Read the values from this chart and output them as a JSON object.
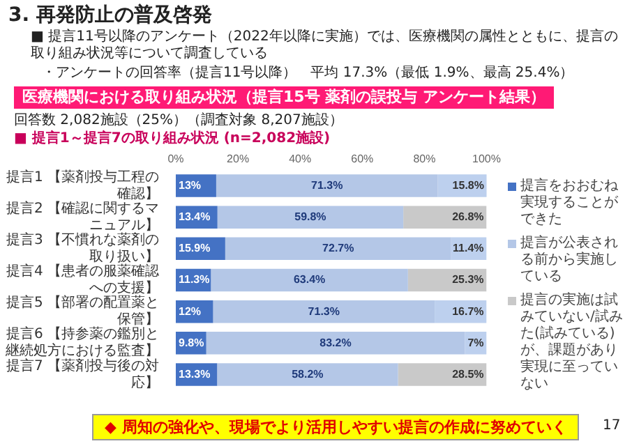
{
  "chart_data": {
    "type": "bar",
    "orientation": "horizontal",
    "stacked": true,
    "title": "医療機関における取り組み状況（提言15号 薬剤の誤投与 アンケート結果）",
    "subtitle": "■ 提言1～提言7の取り組み状況 (n=2,082施設)",
    "annotations": [
      "3. 再発防止の普及啓発",
      "■ 提言11号以降のアンケート（2022年以降に実施）では、医療機関の属性とともに、提言の取り組み状況等について調査している",
      "・アンケートの回答率（提言11号以降）　平均 17.3%（最低 1.9%、最高 25.4%）",
      "回答数 2,082施設（25%）（調査対象 8,207施設）",
      "◆ 周知の強化や、現場でより活用しやすい提言の作成に努めていく",
      "17"
    ],
    "categories": [
      "提言1 【薬剤投与工程の確認】",
      "提言2 【確認に関するマニュアル】",
      "提言3 【不慣れな薬剤の取り扱い】",
      "提言4 【患者の服薬確認への支援】",
      "提言5 【部署の配置薬と保管】",
      "提言6 【持参薬の鑑別と継続処方における監査】",
      "提言7 【薬剤投与後の対応】"
    ],
    "series": [
      {
        "name": "提言をおおむね実現することができた",
        "color": "#4472c4",
        "values": [
          13,
          13.4,
          15.9,
          11.3,
          12,
          9.8,
          13.3
        ],
        "value_labels": [
          "13%",
          "13.4%",
          "15.9%",
          "11.3%",
          "12%",
          "9.8%",
          "13.3%"
        ]
      },
      {
        "name": "提言が公表される前から実施している",
        "color": "#b4c7e7",
        "values": [
          71.3,
          59.8,
          72.7,
          63.4,
          71.3,
          83.2,
          58.2
        ],
        "value_labels": [
          "71.3%",
          "59.8%",
          "72.7%",
          "63.4%",
          "71.3%",
          "83.2%",
          "58.2%"
        ]
      },
      {
        "name": "提言の実施は試みていない/試みた(試みている)が、課題があり実現に至っていない",
        "color": "#c9c9c9",
        "colors": [
          "#bdd0ee",
          "#c9c9c9",
          "#bdd0ee",
          "#c9c9c9",
          "#bdd0ee",
          "#bdd0ee",
          "#c9c9c9"
        ],
        "values": [
          15.8,
          26.8,
          11.4,
          25.3,
          16.7,
          7,
          28.5
        ],
        "value_labels": [
          "15.8%",
          "26.8%",
          "11.4%",
          "25.3%",
          "16.7%",
          "7%",
          "28.5%"
        ]
      }
    ],
    "xlim": [
      0,
      100
    ],
    "xticks": [
      {
        "value": 0,
        "label": "0%"
      },
      {
        "value": 20,
        "label": "20%"
      },
      {
        "value": 40,
        "label": "40%"
      },
      {
        "value": 60,
        "label": "60%"
      },
      {
        "value": 80,
        "label": "80%"
      },
      {
        "value": 100,
        "label": "100%"
      }
    ],
    "grid": false,
    "legend": "right"
  }
}
